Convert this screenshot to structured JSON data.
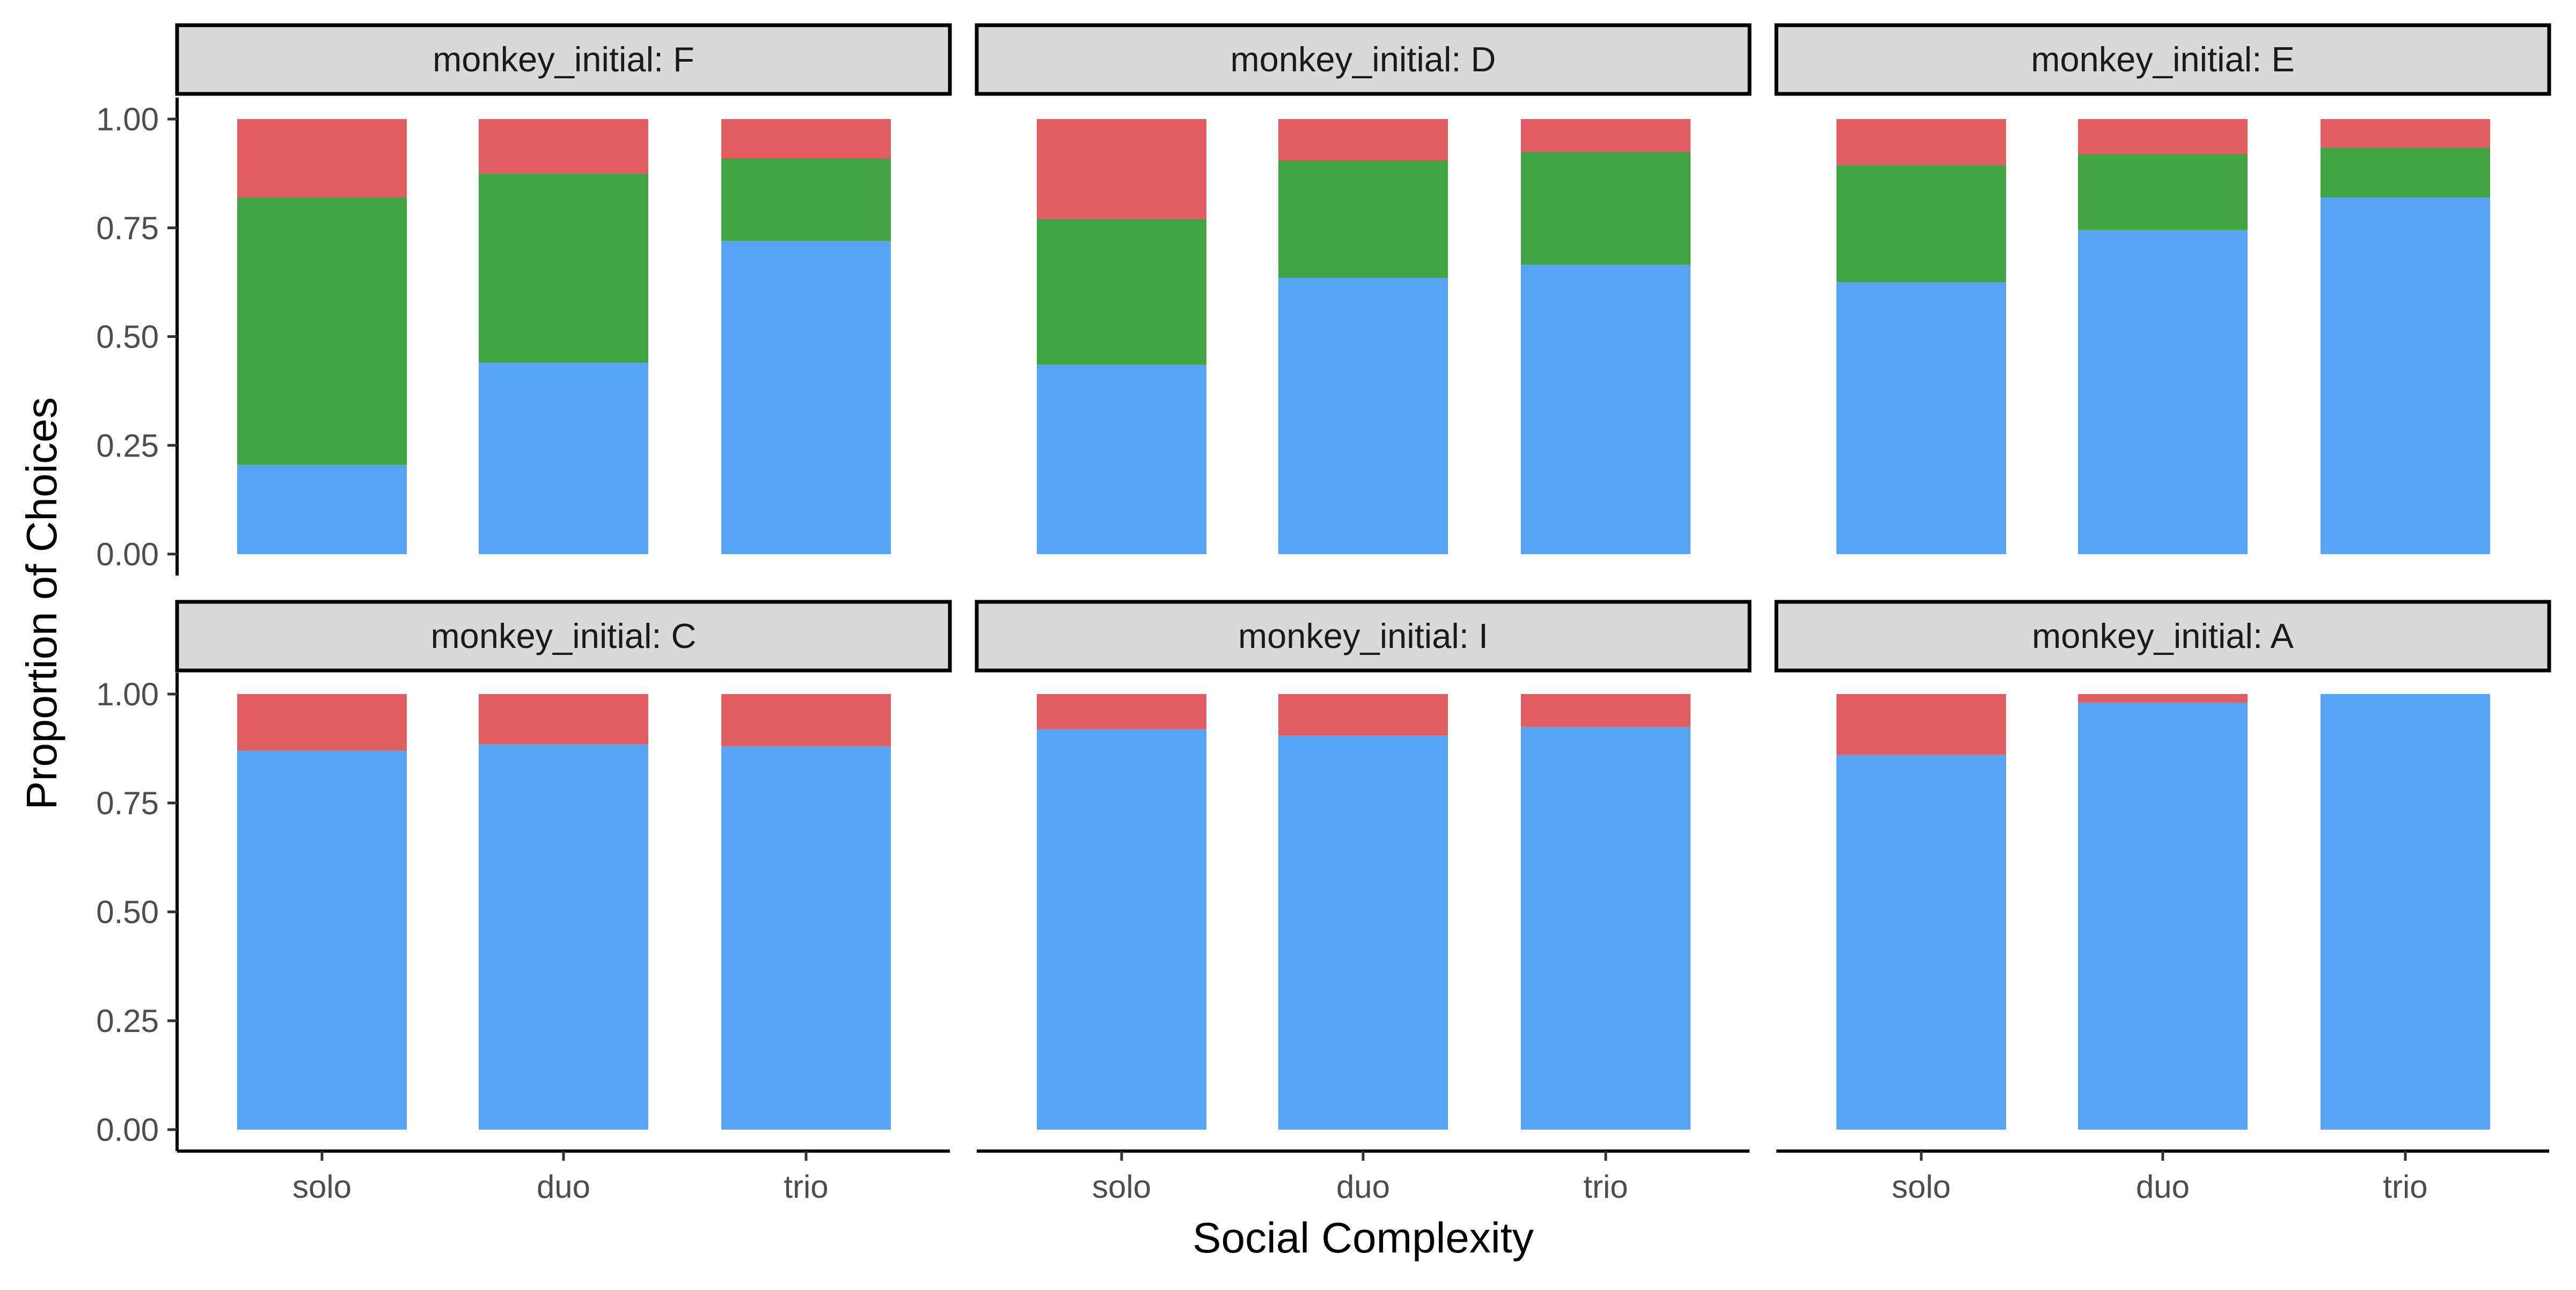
{
  "chart_data": {
    "type": "bar",
    "stacked": true,
    "xlabel": "Social Complexity",
    "ylabel": "Proportion of Choices",
    "ylim": [
      0,
      1
    ],
    "y_ticks": [
      "0.00",
      "0.25",
      "0.50",
      "0.75",
      "1.00"
    ],
    "categories": [
      "solo",
      "duo",
      "trio"
    ],
    "legend": "none",
    "grid": false,
    "colors": {
      "blue": "#56A4F3",
      "green": "#41A341",
      "red": "#E05E62",
      "strip_fill": "#D9D9D9"
    },
    "panels": [
      {
        "strip": "monkey_initial: F",
        "stacks": {
          "blue": [
            0.205,
            0.44,
            0.72
          ],
          "green": [
            0.615,
            0.435,
            0.19
          ],
          "red": [
            0.18,
            0.125,
            0.09
          ]
        }
      },
      {
        "strip": "monkey_initial: D",
        "stacks": {
          "blue": [
            0.435,
            0.635,
            0.665
          ],
          "green": [
            0.335,
            0.27,
            0.26
          ],
          "red": [
            0.23,
            0.095,
            0.075
          ]
        }
      },
      {
        "strip": "monkey_initial: E",
        "stacks": {
          "blue": [
            0.625,
            0.745,
            0.82
          ],
          "green": [
            0.27,
            0.175,
            0.115
          ],
          "red": [
            0.105,
            0.08,
            0.065
          ]
        }
      },
      {
        "strip": "monkey_initial: C",
        "stacks": {
          "blue": [
            0.87,
            0.885,
            0.88
          ],
          "green": [
            0,
            0,
            0
          ],
          "red": [
            0.13,
            0.115,
            0.12
          ]
        }
      },
      {
        "strip": "monkey_initial: I",
        "stacks": {
          "blue": [
            0.92,
            0.905,
            0.925
          ],
          "green": [
            0,
            0,
            0
          ],
          "red": [
            0.08,
            0.095,
            0.075
          ]
        }
      },
      {
        "strip": "monkey_initial: A",
        "stacks": {
          "blue": [
            0.86,
            0.98,
            1.0
          ],
          "green": [
            0,
            0,
            0
          ],
          "red": [
            0.14,
            0.02,
            0.0
          ]
        }
      }
    ]
  }
}
